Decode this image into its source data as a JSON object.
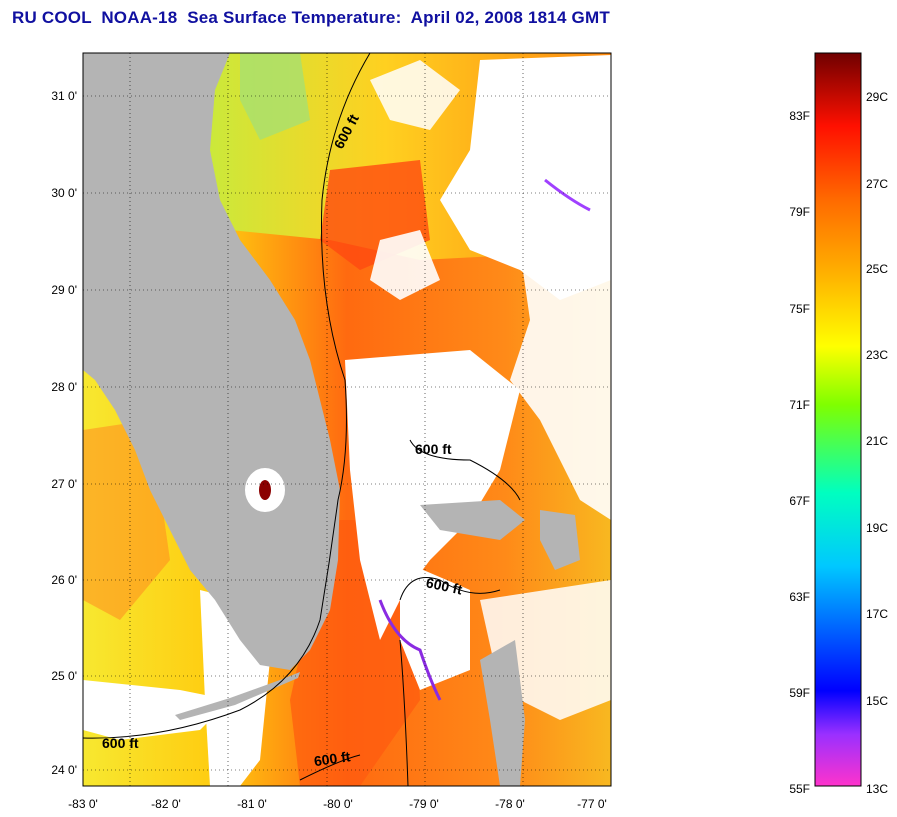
{
  "title": "RU COOL  NOAA-18  Sea Surface Temperature:  April 02, 2008 1814 GMT",
  "axes": {
    "x_ticks": [
      "-83 0'",
      "-82 0'",
      "-81 0'",
      "-80 0'",
      "-79 0'",
      "-78 0'",
      "-77 0'"
    ],
    "y_ticks": [
      "31 0'",
      "30 0'",
      "29 0'",
      "28 0'",
      "27 0'",
      "26 0'",
      "25 0'",
      "24 0'"
    ]
  },
  "isobath_labels": [
    "600 ft",
    "600 ft",
    "600 ft",
    "600 ft",
    "600 ft"
  ],
  "colorbar": {
    "fahrenheit_labels": [
      "83F",
      "79F",
      "75F",
      "71F",
      "67F",
      "63F",
      "59F",
      "55F"
    ],
    "celsius_labels": [
      "29C",
      "27C",
      "25C",
      "23C",
      "21C",
      "19C",
      "17C",
      "15C",
      "13C"
    ],
    "colors": [
      "#ff33cc",
      "#8a2be2",
      "#0000ff",
      "#00c8ff",
      "#00ffc0",
      "#7fff00",
      "#ffff00",
      "#ffc000",
      "#ff7000",
      "#ff2000",
      "#d00000",
      "#7a0000"
    ]
  },
  "colors": {
    "land": "#b4b4b4",
    "cloud": "#ffffff",
    "warm_water": "#ff6a10",
    "mid_water": "#ffb400",
    "cool_water": "#c8ea3c"
  }
}
